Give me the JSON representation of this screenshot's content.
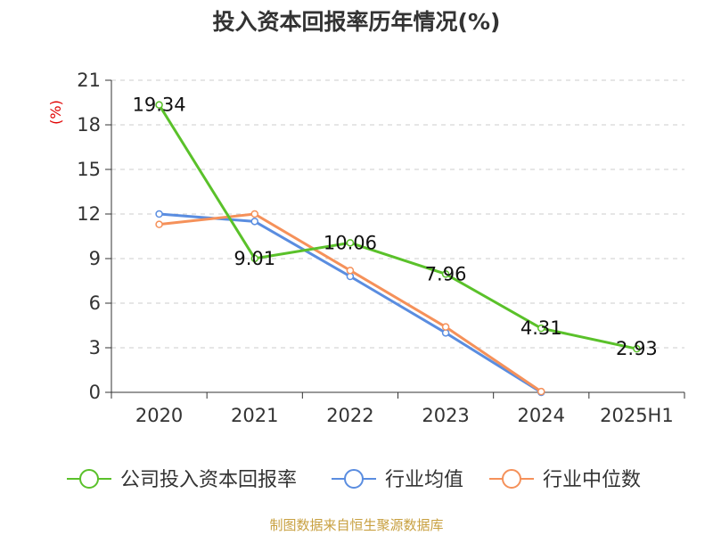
{
  "chart_data": {
    "type": "line",
    "title": "投入资本回报率历年情况(%)",
    "ylabel": "(%)",
    "xlabel": "",
    "categories": [
      "2020",
      "2021",
      "2022",
      "2023",
      "2024",
      "2025H1"
    ],
    "yticks": [
      0,
      3,
      6,
      9,
      12,
      15,
      18,
      21
    ],
    "ylim": [
      0,
      21
    ],
    "grid": true,
    "legend_position": "bottom",
    "series": [
      {
        "name": "公司投入资本回报率",
        "color": "#5ac12a",
        "values": [
          19.34,
          9.01,
          10.06,
          7.96,
          4.31,
          2.93
        ],
        "labels": [
          "19.34",
          "9.01",
          "10.06",
          "7.96",
          "4.31",
          "2.93"
        ]
      },
      {
        "name": "行业均值",
        "color": "#5a8de0",
        "values": [
          12.0,
          11.5,
          7.8,
          4.0,
          0.0,
          null
        ]
      },
      {
        "name": "行业中位数",
        "color": "#f5915a",
        "values": [
          11.3,
          12.0,
          8.2,
          4.4,
          0.05,
          null
        ]
      }
    ]
  },
  "source": "制图数据来自恒生聚源数据库"
}
